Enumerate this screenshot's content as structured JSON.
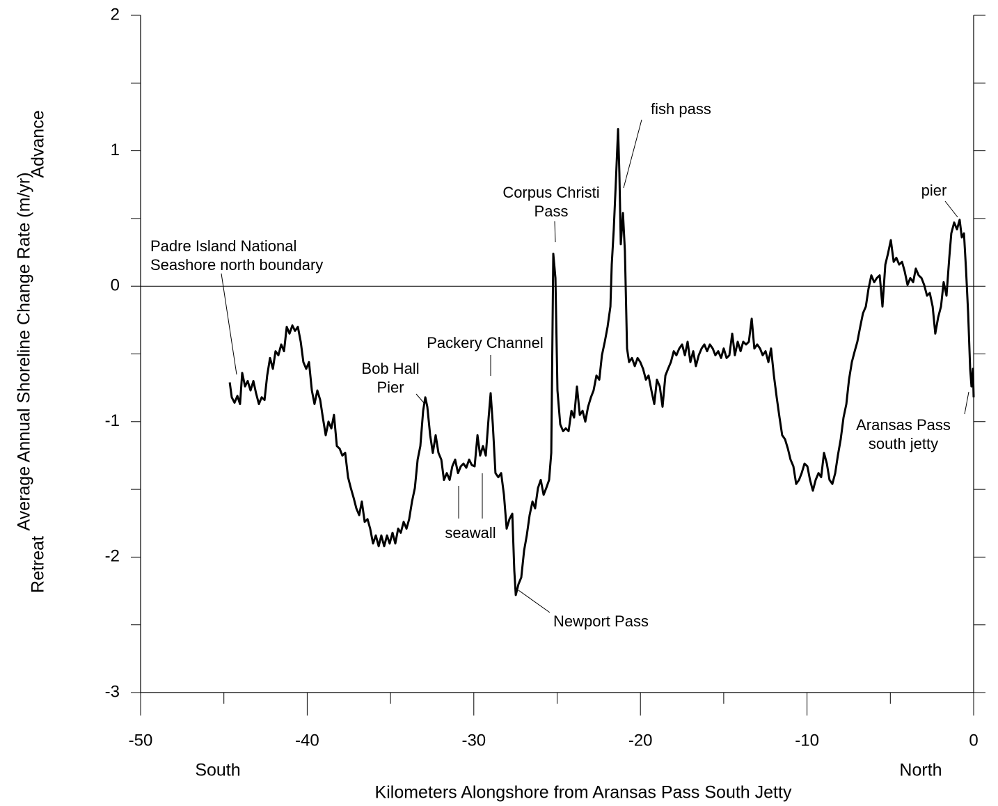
{
  "chart_data": {
    "type": "line",
    "y_label": "Average Annual Shoreline Change Rate (m/yr)",
    "y_label_top": "Advance",
    "y_label_bottom": "Retreat",
    "x_label": "Kilometers Alongshore from Aransas Pass South Jetty",
    "x_label_left": "South",
    "x_label_right": "North",
    "xlim": [
      -50,
      0
    ],
    "ylim": [
      -3,
      2
    ],
    "xticks": [
      -50,
      -40,
      -30,
      -20,
      -10,
      0
    ],
    "xminorticks": [
      -45,
      -35,
      -25,
      -15,
      -5
    ],
    "yticks": [
      -3,
      -2,
      -1,
      0,
      1,
      2
    ],
    "yminorticks": [
      -2.5,
      -1.5,
      -0.5,
      0.5,
      1.5
    ],
    "zero_line": true,
    "annotations": [
      {
        "lines": [
          "Padre Island National",
          "Seashore north boundary"
        ]
      },
      {
        "lines": [
          "Corpus Christi",
          "Pass"
        ]
      },
      {
        "lines": [
          "fish pass"
        ]
      },
      {
        "lines": [
          "pier"
        ]
      },
      {
        "lines": [
          "Bob Hall",
          "Pier"
        ]
      },
      {
        "lines": [
          "Packery Channel"
        ]
      },
      {
        "lines": [
          "seawall"
        ]
      },
      {
        "lines": [
          "Newport Pass"
        ]
      },
      {
        "lines": [
          "Aransas Pass",
          "south jetty"
        ]
      }
    ],
    "series": [
      {
        "color": "#000000",
        "x": [
          -44.65,
          -44.53,
          -44.36,
          -44.19,
          -44.03,
          -43.9,
          -43.73,
          -43.57,
          -43.4,
          -43.23,
          -43.07,
          -42.9,
          -42.73,
          -42.56,
          -42.4,
          -42.23,
          -42.06,
          -41.9,
          -41.73,
          -41.56,
          -41.39,
          -41.23,
          -41.06,
          -40.89,
          -40.73,
          -40.56,
          -40.39,
          -40.23,
          -40.06,
          -39.89,
          -39.72,
          -39.56,
          -39.39,
          -39.22,
          -39.06,
          -38.89,
          -38.72,
          -38.55,
          -38.39,
          -38.22,
          -38.05,
          -37.89,
          -37.72,
          -37.55,
          -37.38,
          -37.22,
          -37.05,
          -36.88,
          -36.72,
          -36.55,
          -36.38,
          -36.22,
          -36.05,
          -35.88,
          -35.71,
          -35.55,
          -35.38,
          -35.21,
          -35.05,
          -34.88,
          -34.71,
          -34.54,
          -34.38,
          -34.21,
          -34.04,
          -33.88,
          -33.71,
          -33.54,
          -33.37,
          -33.21,
          -33.04,
          -32.91,
          -32.79,
          -32.62,
          -32.46,
          -32.29,
          -32.12,
          -31.95,
          -31.79,
          -31.62,
          -31.45,
          -31.29,
          -31.12,
          -30.95,
          -30.78,
          -30.62,
          -30.45,
          -30.28,
          -30.12,
          -29.95,
          -29.78,
          -29.62,
          -29.45,
          -29.28,
          -29.11,
          -28.99,
          -28.86,
          -28.7,
          -28.53,
          -28.36,
          -28.19,
          -28.03,
          -27.86,
          -27.69,
          -27.57,
          -27.48,
          -27.32,
          -27.15,
          -26.98,
          -26.82,
          -26.65,
          -26.48,
          -26.32,
          -26.15,
          -25.98,
          -25.81,
          -25.65,
          -25.48,
          -25.35,
          -25.23,
          -25.1,
          -24.98,
          -24.81,
          -24.64,
          -24.48,
          -24.31,
          -24.14,
          -23.98,
          -23.81,
          -23.64,
          -23.47,
          -23.31,
          -23.14,
          -22.97,
          -22.81,
          -22.64,
          -22.47,
          -22.31,
          -22.14,
          -21.97,
          -21.8,
          -21.72,
          -21.6,
          -21.47,
          -21.34,
          -21.26,
          -21.18,
          -21.05,
          -20.93,
          -20.8,
          -20.68,
          -20.51,
          -20.34,
          -20.17,
          -20.01,
          -19.84,
          -19.67,
          -19.51,
          -19.34,
          -19.17,
          -19.01,
          -18.84,
          -18.67,
          -18.5,
          -18.34,
          -18.17,
          -18.0,
          -17.84,
          -17.67,
          -17.5,
          -17.33,
          -17.17,
          -17.0,
          -16.83,
          -16.67,
          -16.5,
          -16.33,
          -16.16,
          -16.0,
          -15.83,
          -15.66,
          -15.5,
          -15.33,
          -15.16,
          -15.0,
          -14.83,
          -14.66,
          -14.49,
          -14.33,
          -14.16,
          -13.99,
          -13.83,
          -13.66,
          -13.49,
          -13.32,
          -13.16,
          -12.99,
          -12.82,
          -12.66,
          -12.49,
          -12.32,
          -12.16,
          -11.99,
          -11.82,
          -11.65,
          -11.49,
          -11.32,
          -11.15,
          -10.99,
          -10.82,
          -10.65,
          -10.48,
          -10.32,
          -10.15,
          -9.98,
          -9.82,
          -9.65,
          -9.48,
          -9.31,
          -9.15,
          -8.98,
          -8.81,
          -8.65,
          -8.48,
          -8.31,
          -8.15,
          -7.98,
          -7.81,
          -7.64,
          -7.48,
          -7.31,
          -7.14,
          -6.98,
          -6.81,
          -6.64,
          -6.47,
          -6.31,
          -6.14,
          -5.97,
          -5.81,
          -5.64,
          -5.47,
          -5.3,
          -5.14,
          -4.97,
          -4.8,
          -4.64,
          -4.47,
          -4.3,
          -4.14,
          -3.97,
          -3.8,
          -3.63,
          -3.47,
          -3.3,
          -3.13,
          -2.97,
          -2.8,
          -2.63,
          -2.46,
          -2.3,
          -2.13,
          -1.96,
          -1.8,
          -1.63,
          -1.46,
          -1.34,
          -1.17,
          -1.0,
          -0.84,
          -0.71,
          -0.58,
          -0.46,
          -0.33,
          -0.21,
          -0.13,
          -0.04,
          0
        ],
        "values": [
          -0.71,
          -0.82,
          -0.86,
          -0.81,
          -0.87,
          -0.64,
          -0.74,
          -0.7,
          -0.77,
          -0.7,
          -0.79,
          -0.87,
          -0.82,
          -0.84,
          -0.66,
          -0.53,
          -0.61,
          -0.48,
          -0.51,
          -0.43,
          -0.48,
          -0.3,
          -0.35,
          -0.29,
          -0.33,
          -0.3,
          -0.41,
          -0.56,
          -0.61,
          -0.56,
          -0.77,
          -0.87,
          -0.77,
          -0.84,
          -0.97,
          -1.1,
          -1.0,
          -1.05,
          -0.95,
          -1.18,
          -1.2,
          -1.25,
          -1.23,
          -1.41,
          -1.49,
          -1.56,
          -1.64,
          -1.69,
          -1.59,
          -1.74,
          -1.72,
          -1.79,
          -1.9,
          -1.84,
          -1.92,
          -1.84,
          -1.92,
          -1.84,
          -1.9,
          -1.82,
          -1.9,
          -1.79,
          -1.82,
          -1.74,
          -1.79,
          -1.72,
          -1.59,
          -1.49,
          -1.28,
          -1.18,
          -0.92,
          -0.82,
          -0.89,
          -1.1,
          -1.23,
          -1.1,
          -1.23,
          -1.28,
          -1.43,
          -1.38,
          -1.43,
          -1.33,
          -1.28,
          -1.38,
          -1.33,
          -1.31,
          -1.34,
          -1.28,
          -1.32,
          -1.33,
          -1.1,
          -1.25,
          -1.18,
          -1.25,
          -0.97,
          -0.79,
          -1.02,
          -1.38,
          -1.41,
          -1.38,
          -1.54,
          -1.79,
          -1.72,
          -1.68,
          -2.1,
          -2.28,
          -2.2,
          -2.15,
          -1.95,
          -1.84,
          -1.69,
          -1.59,
          -1.64,
          -1.49,
          -1.43,
          -1.54,
          -1.49,
          -1.43,
          -1.23,
          0.24,
          0.06,
          -0.77,
          -1.02,
          -1.07,
          -1.05,
          -1.07,
          -0.92,
          -0.97,
          -0.74,
          -0.95,
          -0.92,
          -1.0,
          -0.89,
          -0.82,
          -0.77,
          -0.66,
          -0.69,
          -0.51,
          -0.41,
          -0.3,
          -0.15,
          0.16,
          0.42,
          0.78,
          1.16,
          0.83,
          0.31,
          0.54,
          0.26,
          -0.46,
          -0.56,
          -0.53,
          -0.59,
          -0.53,
          -0.56,
          -0.61,
          -0.69,
          -0.66,
          -0.77,
          -0.87,
          -0.69,
          -0.74,
          -0.89,
          -0.66,
          -0.61,
          -0.56,
          -0.48,
          -0.51,
          -0.46,
          -0.43,
          -0.51,
          -0.41,
          -0.56,
          -0.48,
          -0.59,
          -0.51,
          -0.46,
          -0.43,
          -0.48,
          -0.43,
          -0.46,
          -0.51,
          -0.48,
          -0.53,
          -0.46,
          -0.53,
          -0.51,
          -0.35,
          -0.51,
          -0.41,
          -0.48,
          -0.41,
          -0.43,
          -0.41,
          -0.24,
          -0.46,
          -0.43,
          -0.46,
          -0.51,
          -0.48,
          -0.56,
          -0.46,
          -0.66,
          -0.82,
          -0.97,
          -1.1,
          -1.13,
          -1.2,
          -1.28,
          -1.33,
          -1.46,
          -1.43,
          -1.38,
          -1.31,
          -1.33,
          -1.43,
          -1.51,
          -1.43,
          -1.38,
          -1.41,
          -1.23,
          -1.31,
          -1.43,
          -1.46,
          -1.38,
          -1.25,
          -1.13,
          -0.97,
          -0.87,
          -0.69,
          -0.56,
          -0.48,
          -0.41,
          -0.3,
          -0.2,
          -0.15,
          -0.02,
          0.08,
          0.03,
          0.06,
          0.08,
          -0.15,
          0.16,
          0.24,
          0.34,
          0.18,
          0.21,
          0.16,
          0.18,
          0.11,
          0.01,
          0.06,
          0.03,
          0.13,
          0.08,
          0.06,
          0.01,
          -0.07,
          -0.05,
          -0.15,
          -0.35,
          -0.23,
          -0.15,
          0.03,
          -0.07,
          0.21,
          0.39,
          0.47,
          0.42,
          0.49,
          0.36,
          0.39,
          0.13,
          -0.2,
          -0.61,
          -0.74,
          -0.61,
          -0.82
        ]
      }
    ]
  }
}
